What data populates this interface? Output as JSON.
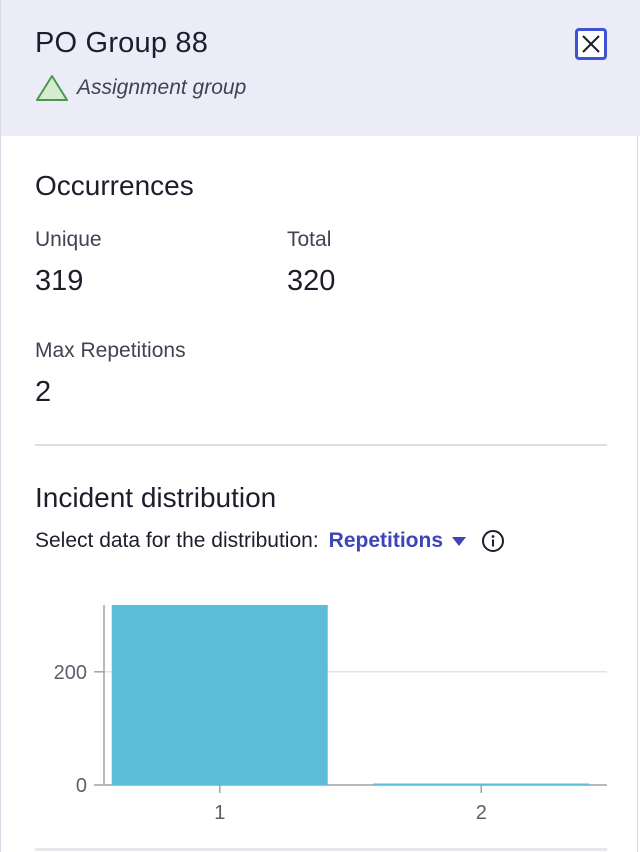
{
  "header": {
    "title": "PO Group 88",
    "subtitle": "Assignment group",
    "subtitle_icon": "triangle-icon",
    "close_icon": "close-icon"
  },
  "occurrences": {
    "title": "Occurrences",
    "unique_label": "Unique",
    "unique_value": "319",
    "total_label": "Total",
    "total_value": "320",
    "max_rep_label": "Max Repetitions",
    "max_rep_value": "2"
  },
  "distribution": {
    "title": "Incident distribution",
    "select_label": "Select data for the distribution:",
    "selected_option": "Repetitions",
    "dropdown_icon": "caret-down-icon",
    "info_icon": "info-icon"
  },
  "colors": {
    "header_bg": "#ebecf7",
    "accent": "#3d45b8",
    "bar": "#5dbdd9",
    "triangle_fill": "#d6ecd0",
    "triangle_stroke": "#4a9a4a"
  },
  "chart_data": {
    "type": "bar",
    "categories": [
      "1",
      "2"
    ],
    "values": [
      318,
      1
    ],
    "ylim": [
      0,
      318
    ],
    "yticks": [
      0,
      200
    ],
    "xlabel": "",
    "ylabel": "",
    "grid": true
  }
}
